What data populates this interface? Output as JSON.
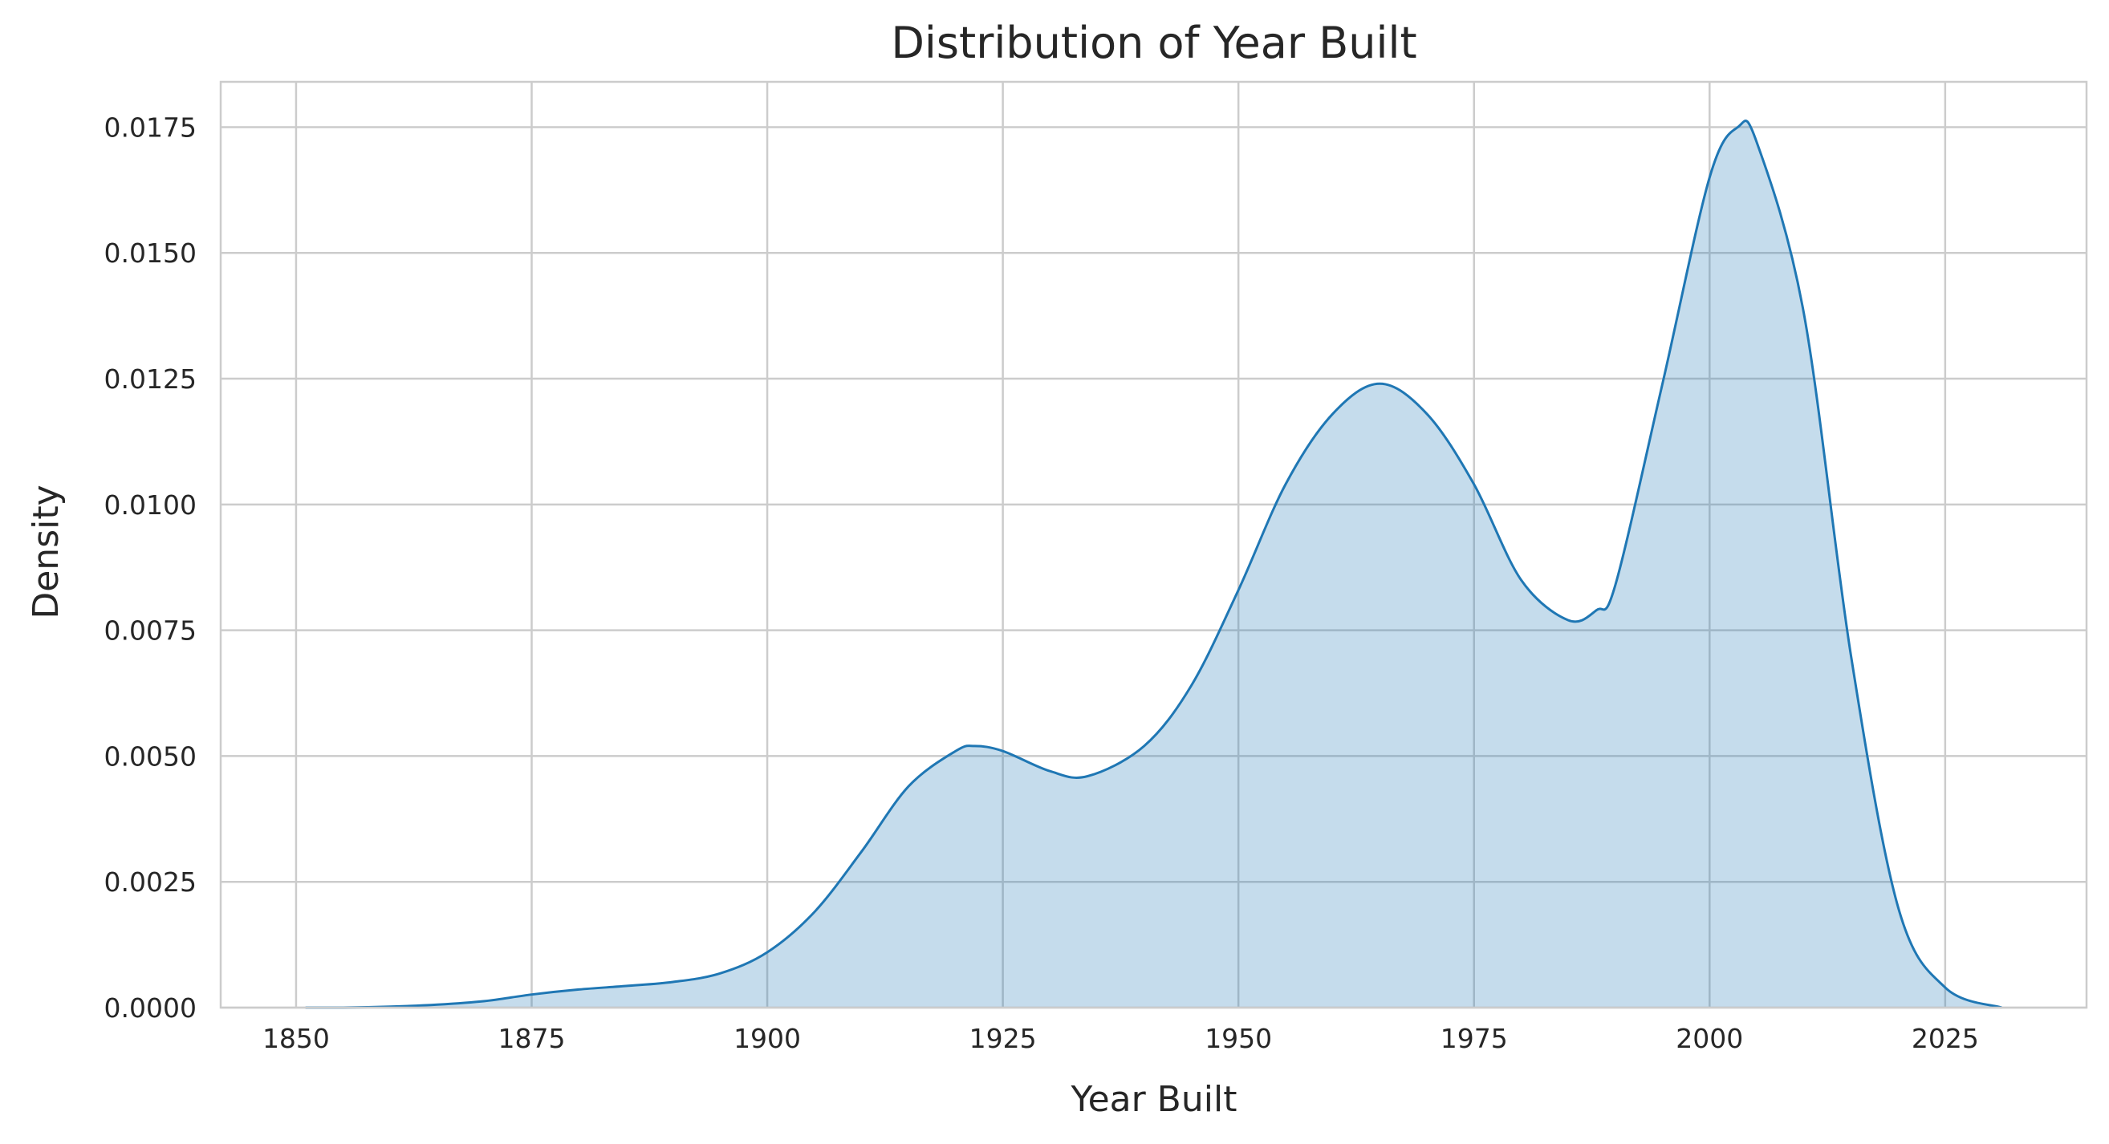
{
  "chart_data": {
    "type": "area",
    "title": "Distribution of Year Built",
    "xlabel": "Year Built",
    "ylabel": "Density",
    "xlim": [
      1842,
      2040
    ],
    "ylim": [
      0,
      0.0184
    ],
    "xticks": [
      1850,
      1875,
      1900,
      1925,
      1950,
      1975,
      2000,
      2025
    ],
    "xtick_labels": [
      "1850",
      "1875",
      "1900",
      "1925",
      "1950",
      "1975",
      "2000",
      "2025"
    ],
    "yticks": [
      0,
      0.0025,
      0.005,
      0.0075,
      0.01,
      0.0125,
      0.015,
      0.0175
    ],
    "ytick_labels": [
      "0.0000",
      "0.0025",
      "0.0050",
      "0.0075",
      "0.0100",
      "0.0125",
      "0.0150",
      "0.0175"
    ],
    "grid": true,
    "colors": {
      "line": "#1f77b4",
      "fill": "#1f77b4",
      "fill_opacity": 0.26,
      "grid": "#cccccc",
      "text": "#262626"
    },
    "series": [
      {
        "x": [
          1851,
          1855,
          1860,
          1865,
          1870,
          1875,
          1880,
          1885,
          1890,
          1895,
          1900,
          1905,
          1910,
          1915,
          1920,
          1922,
          1925,
          1930,
          1934,
          1940,
          1945,
          1950,
          1955,
          1960,
          1965,
          1970,
          1975,
          1980,
          1985,
          1988,
          1990,
          1995,
          2000,
          2003,
          2005,
          2010,
          2015,
          2020,
          2025,
          2031
        ],
        "y": [
          0.0,
          0.0,
          2e-05,
          6e-05,
          0.00013,
          0.00026,
          0.00036,
          0.00043,
          0.00051,
          0.00068,
          0.0011,
          0.0019,
          0.0031,
          0.0044,
          0.0051,
          0.0052,
          0.0051,
          0.0047,
          0.0046,
          0.0052,
          0.0064,
          0.0083,
          0.0104,
          0.0118,
          0.0124,
          0.0118,
          0.0104,
          0.0085,
          0.0077,
          0.0079,
          0.0084,
          0.0124,
          0.0165,
          0.0175,
          0.0172,
          0.0138,
          0.007,
          0.002,
          0.0004,
          0.0
        ]
      }
    ]
  }
}
